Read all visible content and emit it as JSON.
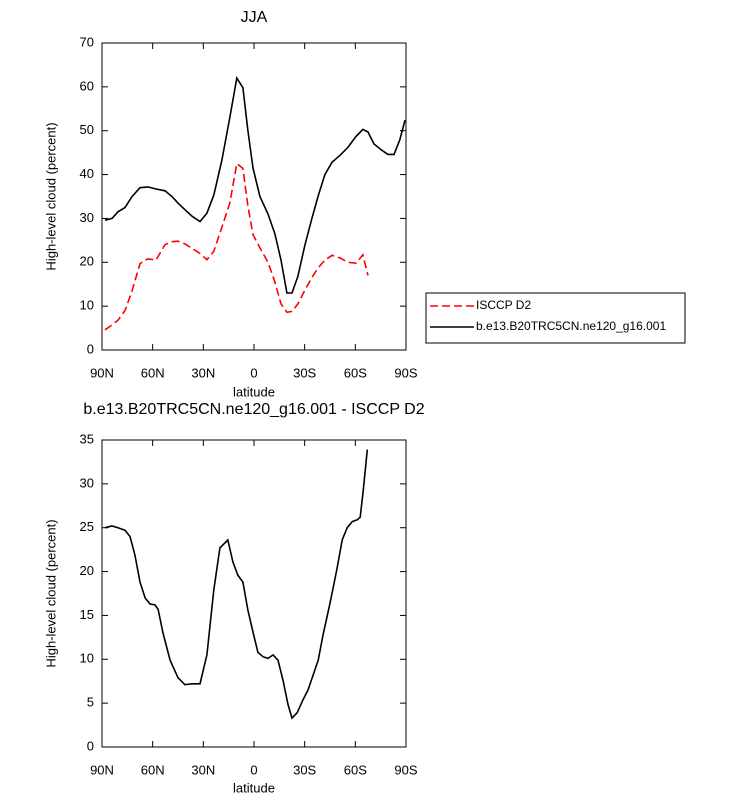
{
  "chart_data": [
    {
      "type": "line",
      "title": "JJA",
      "xlabel": "latitude",
      "ylabel": "High-level cloud (percent)",
      "x": [
        88.2,
        84.1,
        80.5,
        76.4,
        72.2,
        67.5,
        62.8,
        58.0,
        52.7,
        48.6,
        45.0,
        40.9,
        36.7,
        32.0,
        27.9,
        23.8,
        19.0,
        14.3,
        10.2,
        6.6,
        3.6,
        0.6,
        -3.5,
        -8.3,
        -12.4,
        -16.0,
        -19.5,
        -22.5,
        -26.0,
        -30.2,
        -34.3,
        -37.9,
        -42.0,
        -46.2,
        -50.9,
        -55.6,
        -60.4,
        -64.5,
        -67.5,
        -71.0,
        -75.2,
        -79.3,
        -82.9,
        -86.4,
        -89.4
      ],
      "series": [
        {
          "name": "ISCCP D2",
          "color": "#ff0000",
          "line_style": "dashed",
          "values": [
            4.6,
            5.7,
            6.8,
            9,
            13.5,
            19.7,
            20.8,
            20.5,
            24,
            24.7,
            24.8,
            24.2,
            23.2,
            22,
            20.6,
            22.5,
            28,
            33.5,
            42.5,
            41.4,
            32.8,
            26.3,
            23.3,
            20,
            15.5,
            10.5,
            8.6,
            8.8,
            10.5,
            13.7,
            16.5,
            18.7,
            20.5,
            21.6,
            21,
            20,
            19.8,
            21.7,
            17,
            null,
            null,
            null,
            null,
            null,
            null
          ]
        },
        {
          "name": "b.e13.B20TRC5CN.ne120_g16.001",
          "color": "#000000",
          "line_style": "solid",
          "values": [
            29.6,
            30,
            31.5,
            32.5,
            35,
            37,
            37.2,
            36.7,
            36.3,
            35,
            33.5,
            32,
            30.5,
            29.3,
            31.2,
            35.3,
            43.3,
            53,
            62,
            59.8,
            50,
            41.5,
            35,
            31,
            26.5,
            20.5,
            13,
            13,
            16.8,
            24,
            30,
            35,
            40,
            42.8,
            44.4,
            46.2,
            48.7,
            50.3,
            49.7,
            47,
            45.7,
            44.6,
            44.6,
            48,
            52.4
          ]
        }
      ],
      "xlim": [
        90,
        -90
      ],
      "xticks": [
        {
          "value": 90,
          "label": "90N"
        },
        {
          "value": 60,
          "label": "60N"
        },
        {
          "value": 30,
          "label": "30N"
        },
        0,
        {
          "value": -30,
          "label": "30S"
        },
        {
          "value": -60,
          "label": "60S"
        },
        {
          "value": -90,
          "label": "90S"
        }
      ],
      "ylim": [
        0,
        70
      ],
      "yticks": [
        0,
        10,
        20,
        30,
        40,
        50,
        60,
        70
      ],
      "legend": "right"
    },
    {
      "type": "line",
      "title": "b.e13.B20TRC5CN.ne120_g16.001 - ISCCP D2",
      "xlabel": "latitude",
      "ylabel": "High-level cloud (percent)",
      "x": [
        88.2,
        84.1,
        80.5,
        76.4,
        73.4,
        70.5,
        67.5,
        64.5,
        61.6,
        58.6,
        56.8,
        53.9,
        49.7,
        45.0,
        40.9,
        36.7,
        32.0,
        27.9,
        23.8,
        20.2,
        15.5,
        12.5,
        9.6,
        6.6,
        3.6,
        0.6,
        -2.3,
        -5.3,
        -8.3,
        -11.3,
        -14.2,
        -17.2,
        -20.2,
        -22.5,
        -25.5,
        -29.1,
        -32.0,
        -35.0,
        -38.0,
        -40.9,
        -45.1,
        -49.2,
        -52.2,
        -55.2,
        -58.2,
        -61.1,
        -62.9,
        -64.7,
        -67.1
      ],
      "values": [
        25,
        25.2,
        25,
        24.7,
        24,
        21.9,
        18.8,
        17,
        16.3,
        16.2,
        15.7,
        13,
        9.9,
        7.9,
        7.1,
        7.2,
        7.2,
        10.5,
        17.9,
        22.7,
        23.6,
        21.1,
        19.6,
        18.8,
        15.6,
        13.1,
        10.8,
        10.3,
        10.1,
        10.5,
        9.9,
        7.6,
        4.8,
        3.3,
        3.9,
        5.4,
        6.5,
        8.2,
        9.9,
        12.8,
        16.5,
        20.4,
        23.6,
        25,
        25.7,
        25.9,
        26.2,
        29.3,
        33.9
      ],
      "color": "#000000",
      "xlim": [
        90,
        -90
      ],
      "xticks": [
        {
          "value": 90,
          "label": "90N"
        },
        {
          "value": 60,
          "label": "60N"
        },
        {
          "value": 30,
          "label": "30N"
        },
        0,
        {
          "value": -30,
          "label": "30S"
        },
        {
          "value": -60,
          "label": "60S"
        },
        {
          "value": -90,
          "label": "90S"
        }
      ],
      "ylim": [
        0,
        35
      ],
      "yticks": [
        0,
        5,
        10,
        15,
        20,
        25,
        30,
        35
      ]
    }
  ]
}
